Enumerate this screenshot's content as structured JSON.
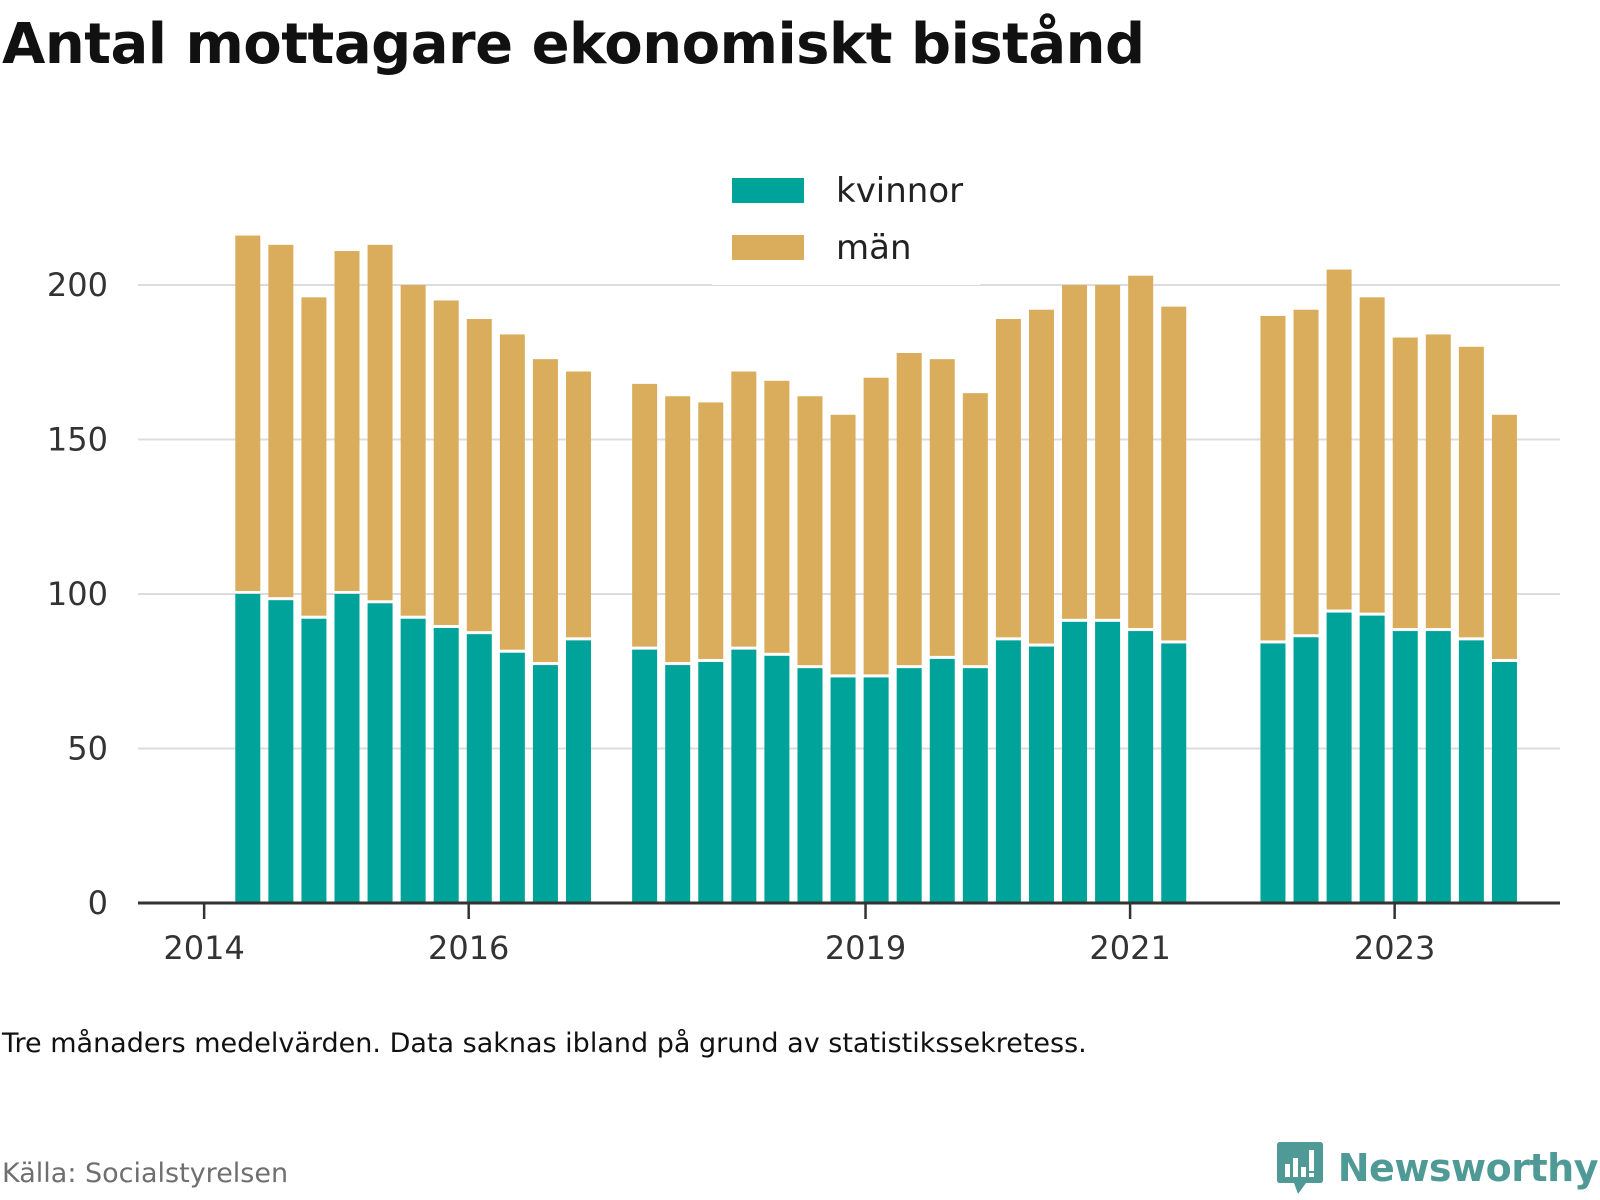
{
  "header": {
    "title": "Antal mottagare ekonomiskt bistånd"
  },
  "footer": {
    "note": "Tre månaders medelvärden. Data saknas ibland på grund av statistikssekretess.",
    "source": "Källa: Socialstyrelsen",
    "brand": "Newsworthy",
    "brand_icon": "bar-chart-speech-bubble-icon"
  },
  "chart_data": {
    "type": "bar",
    "stacked": true,
    "title": "Antal mottagare ekonomiskt bistånd",
    "xlabel": "",
    "ylabel": "",
    "ylim": [
      0,
      220
    ],
    "yticks": [
      0,
      50,
      100,
      150,
      200
    ],
    "ytick_labels": [
      "0",
      "50",
      "100",
      "150",
      "200"
    ],
    "xticks": [
      {
        "label": "2014",
        "x": 2014.0
      },
      {
        "label": "2016",
        "x": 2016.0
      },
      {
        "label": "2019",
        "x": 2019.0
      },
      {
        "label": "2021",
        "x": 2021.0
      },
      {
        "label": "2023",
        "x": 2023.0
      }
    ],
    "xlim": [
      2013.5,
      2024.25
    ],
    "grid": true,
    "legend_position": "top-center",
    "colors": {
      "kvinnor": "#00a39a",
      "män": "#d9ad5b"
    },
    "x": [
      2014.33,
      2014.58,
      2014.83,
      2015.08,
      2015.33,
      2015.58,
      2015.83,
      2016.08,
      2016.33,
      2016.58,
      2016.83,
      2017.33,
      2017.58,
      2017.83,
      2018.08,
      2018.33,
      2018.58,
      2018.83,
      2019.08,
      2019.33,
      2019.58,
      2019.83,
      2020.08,
      2020.33,
      2020.58,
      2020.83,
      2021.08,
      2021.33,
      2022.08,
      2022.33,
      2022.58,
      2022.83,
      2023.08,
      2023.33,
      2023.58,
      2023.83
    ],
    "series": [
      {
        "name": "kvinnor",
        "values": [
          100,
          98,
          92,
          100,
          97,
          92,
          89,
          87,
          81,
          77,
          85,
          82,
          77,
          78,
          82,
          80,
          76,
          73,
          73,
          76,
          79,
          76,
          85,
          83,
          91,
          91,
          88,
          84,
          84,
          86,
          94,
          93,
          88,
          88,
          85,
          78
        ]
      },
      {
        "name": "män",
        "values": [
          116,
          115,
          104,
          111,
          116,
          108,
          106,
          102,
          103,
          99,
          87,
          86,
          87,
          84,
          90,
          89,
          88,
          85,
          97,
          102,
          97,
          89,
          104,
          109,
          109,
          109,
          115,
          109,
          106,
          106,
          111,
          103,
          95,
          96,
          95,
          80
        ]
      }
    ]
  }
}
